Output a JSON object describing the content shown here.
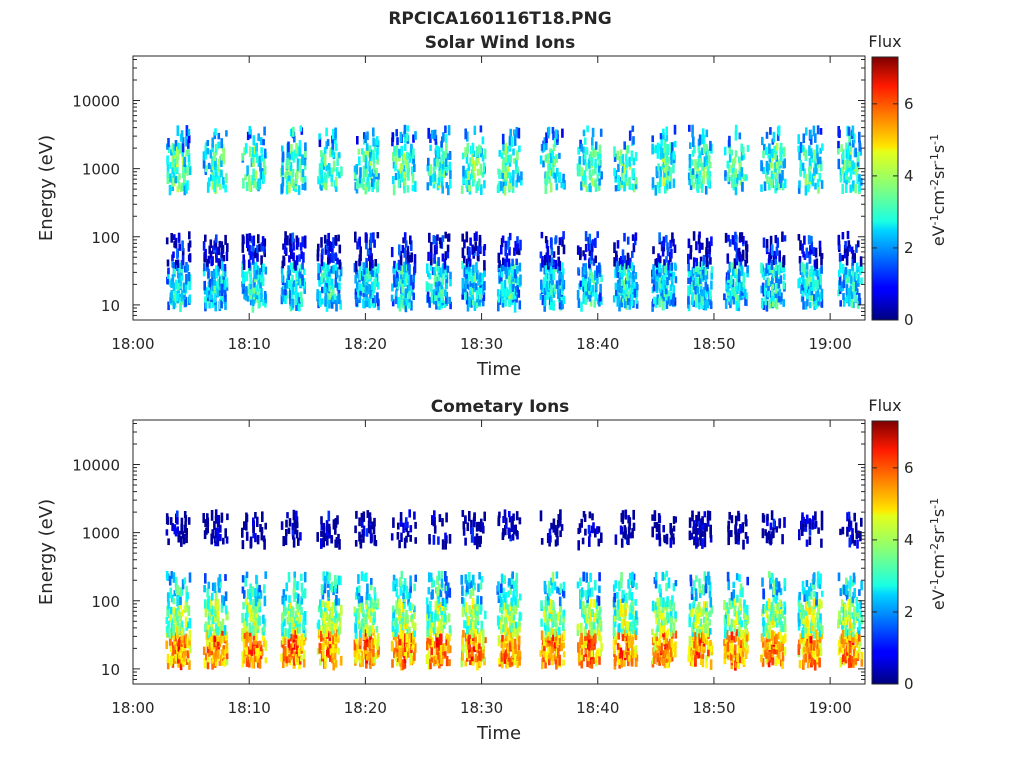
{
  "figure": {
    "filename_title": "RPCICA160116T18.PNG"
  },
  "chart_data": [
    {
      "type": "heatmap",
      "title": "Solar Wind Ions",
      "xlabel": "Time",
      "ylabel": "Energy (eV)",
      "x_ticks": [
        "18:00",
        "18:10",
        "18:20",
        "18:30",
        "18:40",
        "18:50",
        "19:00"
      ],
      "x_range_minutes_after_1800": [
        0,
        63
      ],
      "y_ticks": [
        "10",
        "100",
        "1000",
        "10000"
      ],
      "y_tick_values": [
        10,
        100,
        1000,
        10000
      ],
      "y_scale": "log",
      "y_range": [
        6,
        45000
      ],
      "colorbar": {
        "label": "Flux",
        "unit_label": "eV-1cm-2sr-1s-1",
        "ticks": [
          "0",
          "2",
          "4",
          "6"
        ],
        "range": [
          0,
          7.3
        ],
        "colormap": "jet"
      },
      "grid": false,
      "scan_times_min": [
        3.8,
        7.0,
        10.3,
        13.7,
        16.8,
        20.0,
        23.2,
        26.2,
        29.2,
        32.3,
        36.0,
        39.2,
        42.3,
        45.6,
        48.7,
        51.8,
        55.0,
        58.2,
        61.6
      ],
      "bands": [
        {
          "emin": 10,
          "emax": 40,
          "level": 2.8,
          "density": 0.8
        },
        {
          "emin": 40,
          "emax": 110,
          "level": 1.0,
          "density": 0.4
        },
        {
          "emin": 500,
          "emax": 2200,
          "level": 3.3,
          "density": 0.55
        },
        {
          "emin": 2200,
          "emax": 4000,
          "level": 2.4,
          "density": 0.25
        }
      ]
    },
    {
      "type": "heatmap",
      "title": "Cometary Ions",
      "xlabel": "Time",
      "ylabel": "Energy (eV)",
      "x_ticks": [
        "18:00",
        "18:10",
        "18:20",
        "18:30",
        "18:40",
        "18:50",
        "19:00"
      ],
      "x_range_minutes_after_1800": [
        0,
        63
      ],
      "y_ticks": [
        "10",
        "100",
        "1000",
        "10000"
      ],
      "y_tick_values": [
        10,
        100,
        1000,
        10000
      ],
      "y_scale": "log",
      "y_range": [
        6,
        45000
      ],
      "colorbar": {
        "label": "Flux",
        "unit_label": "eV-1cm-2sr-1s-1",
        "ticks": [
          "0",
          "2",
          "4",
          "6"
        ],
        "range": [
          0,
          7.3
        ],
        "colormap": "jet"
      },
      "grid": false,
      "scan_times_min": [
        3.8,
        7.0,
        10.3,
        13.7,
        16.8,
        20.0,
        23.2,
        26.2,
        29.2,
        32.3,
        36.0,
        39.2,
        42.3,
        45.6,
        48.7,
        51.8,
        55.0,
        58.2,
        61.6
      ],
      "bands": [
        {
          "emin": 12,
          "emax": 35,
          "level": 5.6,
          "density": 0.9
        },
        {
          "emin": 35,
          "emax": 100,
          "level": 4.0,
          "density": 0.75
        },
        {
          "emin": 100,
          "emax": 250,
          "level": 2.9,
          "density": 0.35
        },
        {
          "emin": 700,
          "emax": 2000,
          "level": 0.4,
          "density": 0.35
        }
      ]
    }
  ]
}
